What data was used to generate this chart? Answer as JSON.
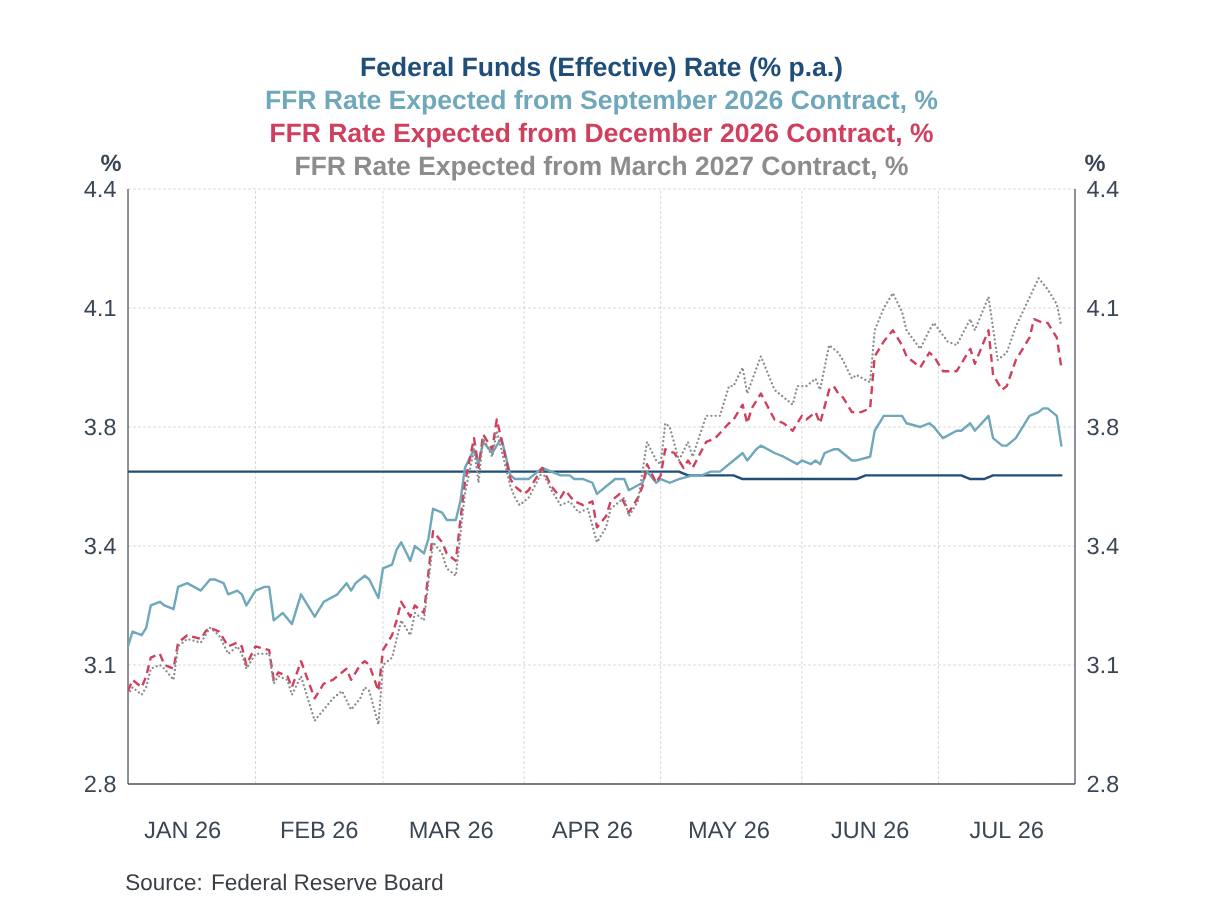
{
  "chart_data": {
    "type": "line",
    "ylabel": "%",
    "y2label": "%",
    "annotations": [
      "Source:  Federal Reserve Board"
    ],
    "xlim": [
      "2026-01-04",
      "2026-07-31"
    ],
    "xticks": [
      {
        "value": "2026-01-16",
        "label": "JAN 26"
      },
      {
        "value": "2026-02-01",
        "label": null
      },
      {
        "value": "2026-02-15",
        "label": "FEB 26"
      },
      {
        "value": "2026-03-01",
        "label": null
      },
      {
        "value": "2026-03-16",
        "label": "MAR 26"
      },
      {
        "value": "2026-04-01",
        "label": null
      },
      {
        "value": "2026-04-16",
        "label": "APR 26"
      },
      {
        "value": "2026-05-01",
        "label": null
      },
      {
        "value": "2026-05-16",
        "label": "MAY 26"
      },
      {
        "value": "2026-06-01",
        "label": null
      },
      {
        "value": "2026-06-16",
        "label": "JUN 26"
      },
      {
        "value": "2026-07-01",
        "label": null
      },
      {
        "value": "2026-07-16",
        "label": "JUL 26"
      }
    ],
    "ylim": [
      2.8,
      4.4
    ],
    "yticks": [
      {
        "value": 2.8,
        "label": "2.8"
      },
      {
        "value": 3.12,
        "label": "3.1"
      },
      {
        "value": 3.44,
        "label": "3.4"
      },
      {
        "value": 3.76,
        "label": "3.8"
      },
      {
        "value": 4.08,
        "label": "4.1"
      },
      {
        "value": 4.4,
        "label": "4.4"
      }
    ],
    "y2lim": [
      2.8,
      4.4
    ],
    "y2ticks": [
      {
        "value": 2.8,
        "label": "2.8"
      },
      {
        "value": 3.12,
        "label": "3.1"
      },
      {
        "value": 3.44,
        "label": "3.4"
      },
      {
        "value": 3.76,
        "label": "3.8"
      },
      {
        "value": 4.08,
        "label": "4.1"
      },
      {
        "value": 4.4,
        "label": "4.4"
      }
    ],
    "grid": true,
    "legend": "top",
    "series": [
      {
        "name": "Federal Funds (Effective) Rate (% p.a.)",
        "color": "#1f4e79",
        "line_style": "solid",
        "x": [
          "2026-01-04",
          "2026-05-05",
          "2026-05-07",
          "2026-05-17",
          "2026-05-19",
          "2026-06-13",
          "2026-06-15",
          "2026-07-06",
          "2026-07-08",
          "2026-07-11",
          "2026-07-13",
          "2026-07-28"
        ],
        "values": [
          3.64,
          3.64,
          3.63,
          3.63,
          3.62,
          3.62,
          3.63,
          3.63,
          3.62,
          3.62,
          3.63,
          3.63
        ]
      },
      {
        "name": "FFR Rate Expected from September 2026 Contract, %",
        "color": "#6fa8ba",
        "line_style": "solid",
        "x": [
          "2026-01-04",
          "2026-01-05",
          "2026-01-07",
          "2026-01-08",
          "2026-01-09",
          "2026-01-11",
          "2026-01-12",
          "2026-01-14",
          "2026-01-15",
          "2026-01-17",
          "2026-01-20",
          "2026-01-22",
          "2026-01-23",
          "2026-01-25",
          "2026-01-26",
          "2026-01-28",
          "2026-01-29",
          "2026-01-30",
          "2026-02-01",
          "2026-02-03",
          "2026-02-04",
          "2026-02-05",
          "2026-02-07",
          "2026-02-09",
          "2026-02-11",
          "2026-02-14",
          "2026-02-16",
          "2026-02-19",
          "2026-02-21",
          "2026-02-22",
          "2026-02-23",
          "2026-02-25",
          "2026-02-26",
          "2026-02-28",
          "2026-03-01",
          "2026-03-03",
          "2026-03-04",
          "2026-03-05",
          "2026-03-07",
          "2026-03-08",
          "2026-03-10",
          "2026-03-11",
          "2026-03-12",
          "2026-03-14",
          "2026-03-15",
          "2026-03-17",
          "2026-03-18",
          "2026-03-19",
          "2026-03-21",
          "2026-03-22",
          "2026-03-23",
          "2026-03-25",
          "2026-03-27",
          "2026-03-29",
          "2026-03-30",
          "2026-04-01",
          "2026-04-02",
          "2026-04-05",
          "2026-04-07",
          "2026-04-09",
          "2026-04-11",
          "2026-04-12",
          "2026-04-14",
          "2026-04-16",
          "2026-04-17",
          "2026-04-19",
          "2026-04-21",
          "2026-04-23",
          "2026-04-24",
          "2026-04-27",
          "2026-04-28",
          "2026-04-30",
          "2026-05-01",
          "2026-05-03",
          "2026-05-05",
          "2026-05-08",
          "2026-05-10",
          "2026-05-12",
          "2026-05-14",
          "2026-05-17",
          "2026-05-19",
          "2026-05-20",
          "2026-05-22",
          "2026-05-23",
          "2026-05-26",
          "2026-05-28",
          "2026-05-31",
          "2026-06-01",
          "2026-06-03",
          "2026-06-04",
          "2026-06-05",
          "2026-06-06",
          "2026-06-08",
          "2026-06-09",
          "2026-06-10",
          "2026-06-12",
          "2026-06-13",
          "2026-06-16",
          "2026-06-17",
          "2026-06-19",
          "2026-06-21",
          "2026-06-23",
          "2026-06-24",
          "2026-06-27",
          "2026-06-29",
          "2026-06-30",
          "2026-07-02",
          "2026-07-05",
          "2026-07-06",
          "2026-07-08",
          "2026-07-09",
          "2026-07-12",
          "2026-07-13",
          "2026-07-15",
          "2026-07-16",
          "2026-07-18",
          "2026-07-21",
          "2026-07-23",
          "2026-07-24",
          "2026-07-25",
          "2026-07-27",
          "2026-07-28"
        ],
        "values": [
          3.17,
          3.21,
          3.2,
          3.22,
          3.28,
          3.29,
          3.28,
          3.27,
          3.33,
          3.34,
          3.32,
          3.35,
          3.35,
          3.34,
          3.31,
          3.32,
          3.31,
          3.28,
          3.32,
          3.33,
          3.33,
          3.24,
          3.26,
          3.23,
          3.31,
          3.25,
          3.29,
          3.31,
          3.34,
          3.32,
          3.34,
          3.36,
          3.35,
          3.3,
          3.38,
          3.39,
          3.43,
          3.45,
          3.4,
          3.44,
          3.42,
          3.46,
          3.54,
          3.53,
          3.51,
          3.51,
          3.56,
          3.65,
          3.7,
          3.66,
          3.72,
          3.69,
          3.73,
          3.63,
          3.62,
          3.62,
          3.62,
          3.65,
          3.64,
          3.63,
          3.63,
          3.62,
          3.62,
          3.61,
          3.58,
          3.6,
          3.62,
          3.62,
          3.59,
          3.61,
          3.64,
          3.61,
          3.62,
          3.61,
          3.62,
          3.63,
          3.63,
          3.64,
          3.64,
          3.67,
          3.69,
          3.67,
          3.7,
          3.71,
          3.69,
          3.68,
          3.66,
          3.67,
          3.66,
          3.67,
          3.66,
          3.69,
          3.7,
          3.7,
          3.69,
          3.67,
          3.67,
          3.68,
          3.75,
          3.79,
          3.79,
          3.79,
          3.77,
          3.76,
          3.77,
          3.76,
          3.73,
          3.75,
          3.75,
          3.77,
          3.75,
          3.79,
          3.73,
          3.71,
          3.71,
          3.73,
          3.79,
          3.8,
          3.81,
          3.81,
          3.79,
          3.71
        ]
      },
      {
        "name": "FFR Rate Expected from December 2026 Contract, %",
        "color": "#d0405e",
        "line_style": "dashed",
        "x": [
          "2026-01-04",
          "2026-01-05",
          "2026-01-07",
          "2026-01-08",
          "2026-01-09",
          "2026-01-11",
          "2026-01-12",
          "2026-01-14",
          "2026-01-15",
          "2026-01-17",
          "2026-01-20",
          "2026-01-21",
          "2026-01-22",
          "2026-01-24",
          "2026-01-26",
          "2026-01-28",
          "2026-01-29",
          "2026-01-30",
          "2026-02-01",
          "2026-02-04",
          "2026-02-05",
          "2026-02-06",
          "2026-02-08",
          "2026-02-09",
          "2026-02-11",
          "2026-02-14",
          "2026-02-16",
          "2026-02-18",
          "2026-02-19",
          "2026-02-21",
          "2026-02-22",
          "2026-02-24",
          "2026-02-25",
          "2026-02-26",
          "2026-02-28",
          "2026-03-01",
          "2026-03-03",
          "2026-03-04",
          "2026-03-05",
          "2026-03-07",
          "2026-03-08",
          "2026-03-10",
          "2026-03-12",
          "2026-03-14",
          "2026-03-15",
          "2026-03-17",
          "2026-03-18",
          "2026-03-19",
          "2026-03-21",
          "2026-03-22",
          "2026-03-23",
          "2026-03-25",
          "2026-03-26",
          "2026-03-29",
          "2026-03-30",
          "2026-04-01",
          "2026-04-02",
          "2026-04-05",
          "2026-04-07",
          "2026-04-09",
          "2026-04-10",
          "2026-04-12",
          "2026-04-14",
          "2026-04-16",
          "2026-04-17",
          "2026-04-19",
          "2026-04-20",
          "2026-04-22",
          "2026-04-24",
          "2026-04-26",
          "2026-04-27",
          "2026-04-28",
          "2026-04-30",
          "2026-05-01",
          "2026-05-02",
          "2026-05-04",
          "2026-05-06",
          "2026-05-07",
          "2026-05-08",
          "2026-05-11",
          "2026-05-13",
          "2026-05-16",
          "2026-05-17",
          "2026-05-19",
          "2026-05-20",
          "2026-05-21",
          "2026-05-23",
          "2026-05-26",
          "2026-05-28",
          "2026-05-30",
          "2026-06-01",
          "2026-06-02",
          "2026-06-04",
          "2026-06-05",
          "2026-06-07",
          "2026-06-08",
          "2026-06-09",
          "2026-06-10",
          "2026-06-12",
          "2026-06-14",
          "2026-06-16",
          "2026-06-17",
          "2026-06-19",
          "2026-06-21",
          "2026-06-23",
          "2026-06-24",
          "2026-06-25",
          "2026-06-27",
          "2026-06-29",
          "2026-06-30",
          "2026-07-02",
          "2026-07-05",
          "2026-07-06",
          "2026-07-08",
          "2026-07-09",
          "2026-07-10",
          "2026-07-12",
          "2026-07-13",
          "2026-07-15",
          "2026-07-16",
          "2026-07-18",
          "2026-07-21",
          "2026-07-22",
          "2026-07-24",
          "2026-07-25",
          "2026-07-27",
          "2026-07-28"
        ],
        "values": [
          3.05,
          3.08,
          3.06,
          3.09,
          3.14,
          3.15,
          3.12,
          3.11,
          3.18,
          3.2,
          3.19,
          3.21,
          3.22,
          3.21,
          3.17,
          3.18,
          3.17,
          3.12,
          3.17,
          3.16,
          3.08,
          3.1,
          3.09,
          3.06,
          3.13,
          3.03,
          3.07,
          3.08,
          3.09,
          3.11,
          3.08,
          3.12,
          3.13,
          3.12,
          3.05,
          3.16,
          3.2,
          3.24,
          3.29,
          3.25,
          3.28,
          3.26,
          3.48,
          3.45,
          3.42,
          3.4,
          3.51,
          3.61,
          3.73,
          3.65,
          3.74,
          3.7,
          3.78,
          3.62,
          3.6,
          3.58,
          3.59,
          3.65,
          3.6,
          3.57,
          3.59,
          3.56,
          3.55,
          3.56,
          3.49,
          3.52,
          3.56,
          3.58,
          3.53,
          3.57,
          3.6,
          3.66,
          3.61,
          3.63,
          3.7,
          3.69,
          3.65,
          3.67,
          3.65,
          3.72,
          3.73,
          3.77,
          3.78,
          3.82,
          3.77,
          3.81,
          3.85,
          3.78,
          3.77,
          3.75,
          3.79,
          3.78,
          3.8,
          3.77,
          3.86,
          3.87,
          3.85,
          3.84,
          3.8,
          3.8,
          3.81,
          3.95,
          3.99,
          4.02,
          3.98,
          3.95,
          3.94,
          3.92,
          3.96,
          3.95,
          3.91,
          3.91,
          3.93,
          3.97,
          3.93,
          3.96,
          4.02,
          3.9,
          3.86,
          3.87,
          3.94,
          4.0,
          4.05,
          4.04,
          4.04,
          4.0,
          3.92
        ]
      },
      {
        "name": "FFR Rate Expected from March 2027 Contract, %",
        "color": "#8c8c8c",
        "line_style": "dotted",
        "x": [
          "2026-01-04",
          "2026-01-05",
          "2026-01-07",
          "2026-01-08",
          "2026-01-09",
          "2026-01-11",
          "2026-01-12",
          "2026-01-14",
          "2026-01-15",
          "2026-01-17",
          "2026-01-20",
          "2026-01-21",
          "2026-01-22",
          "2026-01-24",
          "2026-01-26",
          "2026-01-28",
          "2026-01-29",
          "2026-01-30",
          "2026-02-01",
          "2026-02-04",
          "2026-02-05",
          "2026-02-06",
          "2026-02-08",
          "2026-02-09",
          "2026-02-11",
          "2026-02-14",
          "2026-02-16",
          "2026-02-18",
          "2026-02-20",
          "2026-02-22",
          "2026-02-24",
          "2026-02-25",
          "2026-02-26",
          "2026-02-28",
          "2026-03-01",
          "2026-03-03",
          "2026-03-04",
          "2026-03-05",
          "2026-03-07",
          "2026-03-08",
          "2026-03-10",
          "2026-03-12",
          "2026-03-14",
          "2026-03-15",
          "2026-03-17",
          "2026-03-18",
          "2026-03-19",
          "2026-03-21",
          "2026-03-22",
          "2026-03-23",
          "2026-03-25",
          "2026-03-26",
          "2026-03-29",
          "2026-03-30",
          "2026-03-31",
          "2026-04-02",
          "2026-04-05",
          "2026-04-07",
          "2026-04-09",
          "2026-04-11",
          "2026-04-13",
          "2026-04-15",
          "2026-04-17",
          "2026-04-19",
          "2026-04-20",
          "2026-04-23",
          "2026-04-24",
          "2026-04-26",
          "2026-04-28",
          "2026-04-30",
          "2026-05-01",
          "2026-05-02",
          "2026-05-03",
          "2026-05-05",
          "2026-05-07",
          "2026-05-08",
          "2026-05-11",
          "2026-05-14",
          "2026-05-16",
          "2026-05-17",
          "2026-05-19",
          "2026-05-20",
          "2026-05-23",
          "2026-05-26",
          "2026-05-28",
          "2026-05-30",
          "2026-05-31",
          "2026-06-02",
          "2026-06-04",
          "2026-06-05",
          "2026-06-07",
          "2026-06-09",
          "2026-06-10",
          "2026-06-12",
          "2026-06-13",
          "2026-06-16",
          "2026-06-17",
          "2026-06-19",
          "2026-06-21",
          "2026-06-23",
          "2026-06-24",
          "2026-06-27",
          "2026-06-29",
          "2026-06-30",
          "2026-07-03",
          "2026-07-05",
          "2026-07-08",
          "2026-07-09",
          "2026-07-12",
          "2026-07-14",
          "2026-07-16",
          "2026-07-18",
          "2026-07-23",
          "2026-07-25",
          "2026-07-27",
          "2026-07-28"
        ],
        "values": [
          3.04,
          3.06,
          3.04,
          3.06,
          3.11,
          3.12,
          3.11,
          3.08,
          3.17,
          3.19,
          3.18,
          3.2,
          3.22,
          3.2,
          3.15,
          3.17,
          3.15,
          3.11,
          3.15,
          3.15,
          3.07,
          3.09,
          3.08,
          3.04,
          3.09,
          2.97,
          3.0,
          3.03,
          3.05,
          3.0,
          3.03,
          3.06,
          3.05,
          2.96,
          3.12,
          3.14,
          3.19,
          3.24,
          3.2,
          3.26,
          3.24,
          3.45,
          3.42,
          3.38,
          3.36,
          3.47,
          3.58,
          3.7,
          3.61,
          3.73,
          3.68,
          3.75,
          3.6,
          3.57,
          3.55,
          3.57,
          3.64,
          3.59,
          3.55,
          3.56,
          3.53,
          3.54,
          3.45,
          3.49,
          3.54,
          3.57,
          3.52,
          3.56,
          3.72,
          3.67,
          3.66,
          3.77,
          3.76,
          3.67,
          3.72,
          3.68,
          3.79,
          3.79,
          3.87,
          3.87,
          3.92,
          3.85,
          3.95,
          3.86,
          3.84,
          3.82,
          3.87,
          3.87,
          3.89,
          3.86,
          3.98,
          3.96,
          3.94,
          3.89,
          3.9,
          3.88,
          4.02,
          4.08,
          4.12,
          4.07,
          4.02,
          3.97,
          4.02,
          4.04,
          3.99,
          3.98,
          4.05,
          4.02,
          4.11,
          3.94,
          3.96,
          4.03,
          4.16,
          4.13,
          4.09,
          4.03
        ]
      }
    ]
  }
}
